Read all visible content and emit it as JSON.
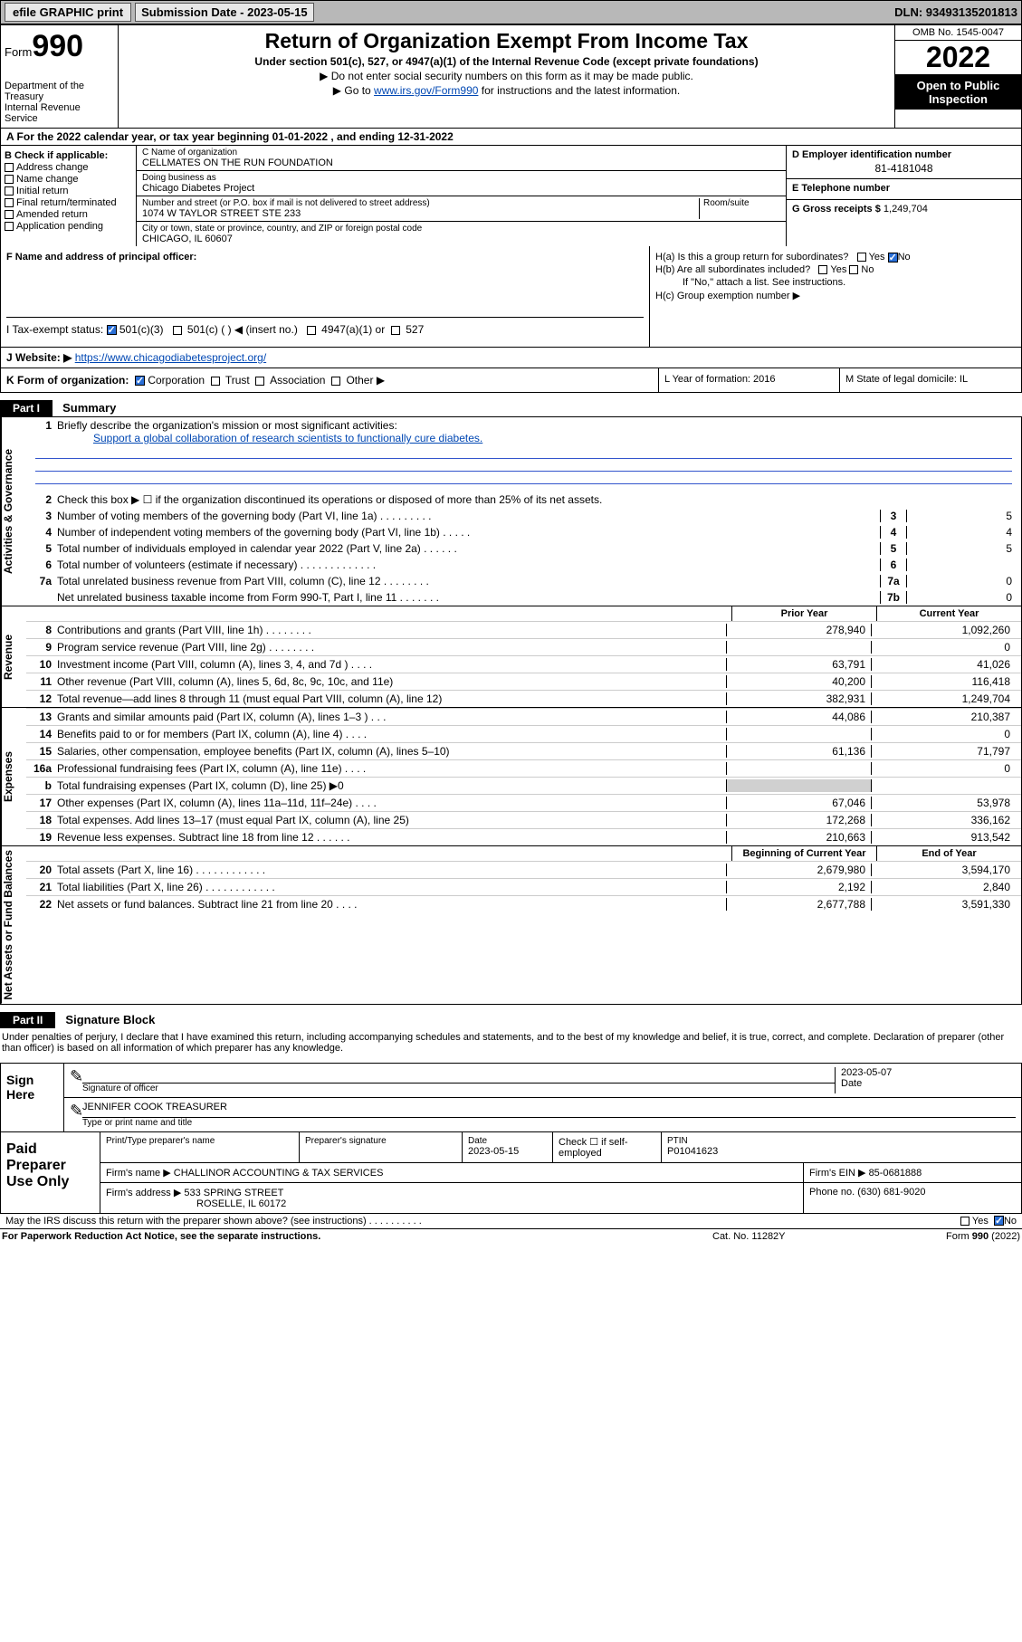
{
  "topbar": {
    "efile": "efile GRAPHIC print",
    "submission_label": "Submission Date - 2023-05-15",
    "dln": "DLN: 93493135201813"
  },
  "header": {
    "form_word": "Form",
    "form_num": "990",
    "dept": "Department of the Treasury",
    "irs": "Internal Revenue Service",
    "title": "Return of Organization Exempt From Income Tax",
    "sub1": "Under section 501(c), 527, or 4947(a)(1) of the Internal Revenue Code (except private foundations)",
    "sub2": "▶ Do not enter social security numbers on this form as it may be made public.",
    "sub3_pre": "▶ Go to ",
    "sub3_link": "www.irs.gov/Form990",
    "sub3_post": " for instructions and the latest information.",
    "omb": "OMB No. 1545-0047",
    "year": "2022",
    "open": "Open to Public Inspection"
  },
  "row_a": "A For the 2022 calendar year, or tax year beginning 01-01-2022    , and ending 12-31-2022",
  "col_b": {
    "title": "B Check if applicable:",
    "items": [
      "Address change",
      "Name change",
      "Initial return",
      "Final return/terminated",
      "Amended return",
      "Application pending"
    ]
  },
  "col_c": {
    "name_lbl": "C Name of organization",
    "name_val": "CELLMATES ON THE RUN FOUNDATION",
    "dba_lbl": "Doing business as",
    "dba_val": "Chicago Diabetes Project",
    "addr_lbl": "Number and street (or P.O. box if mail is not delivered to street address)",
    "room_lbl": "Room/suite",
    "addr_val": "1074 W TAYLOR STREET STE 233",
    "city_lbl": "City or town, state or province, country, and ZIP or foreign postal code",
    "city_val": "CHICAGO, IL  60607"
  },
  "col_de": {
    "d_lbl": "D Employer identification number",
    "d_val": "81-4181048",
    "e_lbl": "E Telephone number",
    "e_val": "",
    "g_lbl": "G Gross receipts $",
    "g_val": "1,249,704"
  },
  "row_f": "F  Name and address of principal officer:",
  "col_h": {
    "ha": "H(a)  Is this a group return for subordinates?",
    "hb": "H(b)  Are all subordinates included?",
    "hb_note": "If \"No,\" attach a list. See instructions.",
    "hc": "H(c)  Group exemption number ▶"
  },
  "row_i": {
    "label": "I   Tax-exempt status:",
    "opt1": "501(c)(3)",
    "opt2": "501(c) (  ) ◀ (insert no.)",
    "opt3": "4947(a)(1) or",
    "opt4": "527"
  },
  "row_j": {
    "label": "J   Website: ▶",
    "val": " https://www.chicagodiabetesproject.org/"
  },
  "row_k": "K Form of organization:",
  "row_k_opts": [
    "Corporation",
    "Trust",
    "Association",
    "Other ▶"
  ],
  "row_l": "L Year of formation: 2016",
  "row_m": "M State of legal domicile: IL",
  "part1": {
    "header": "Part I",
    "title": "Summary"
  },
  "summary": {
    "gov_label": "Activities & Governance",
    "rev_label": "Revenue",
    "exp_label": "Expenses",
    "net_label": "Net Assets or Fund Balances",
    "line1_lbl": "Briefly describe the organization's mission or most significant activities:",
    "line1_val": "Support a global collaboration of research scientists to functionally cure diabetes.",
    "line2": "Check this box ▶ ☐  if the organization discontinued its operations or disposed of more than 25% of its net assets.",
    "lines_gov": [
      {
        "n": "3",
        "d": "Number of voting members of the governing body (Part VI, line 1a)   .    .    .    .    .    .    .    .    .",
        "box": "3",
        "v": "5"
      },
      {
        "n": "4",
        "d": "Number of independent voting members of the governing body (Part VI, line 1b)   .    .    .    .    .",
        "box": "4",
        "v": "4"
      },
      {
        "n": "5",
        "d": "Total number of individuals employed in calendar year 2022 (Part V, line 2a)   .    .    .    .    .    .",
        "box": "5",
        "v": "5"
      },
      {
        "n": "6",
        "d": "Total number of volunteers (estimate if necessary)   .    .    .    .    .    .    .    .    .    .    .    .    .",
        "box": "6",
        "v": ""
      },
      {
        "n": "7a",
        "d": "Total unrelated business revenue from Part VIII, column (C), line 12   .    .    .    .    .    .    .    .",
        "box": "7a",
        "v": "0"
      },
      {
        "n": "",
        "d": "Net unrelated business taxable income from Form 990-T, Part I, line 11   .    .    .    .    .    .    .",
        "box": "7b",
        "v": "0"
      }
    ],
    "prior_head": "Prior Year",
    "curr_head": "Current Year",
    "lines_rev": [
      {
        "n": "8",
        "d": "Contributions and grants (Part VIII, line 1h)   .    .    .    .    .    .    .    .",
        "p": "278,940",
        "c": "1,092,260"
      },
      {
        "n": "9",
        "d": "Program service revenue (Part VIII, line 2g)   .    .    .    .    .    .    .    .",
        "p": "",
        "c": "0"
      },
      {
        "n": "10",
        "d": "Investment income (Part VIII, column (A), lines 3, 4, and 7d )   .    .    .    .",
        "p": "63,791",
        "c": "41,026"
      },
      {
        "n": "11",
        "d": "Other revenue (Part VIII, column (A), lines 5, 6d, 8c, 9c, 10c, and 11e)",
        "p": "40,200",
        "c": "116,418"
      },
      {
        "n": "12",
        "d": "Total revenue—add lines 8 through 11 (must equal Part VIII, column (A), line 12)",
        "p": "382,931",
        "c": "1,249,704"
      }
    ],
    "lines_exp": [
      {
        "n": "13",
        "d": "Grants and similar amounts paid (Part IX, column (A), lines 1–3 )   .    .    .",
        "p": "44,086",
        "c": "210,387"
      },
      {
        "n": "14",
        "d": "Benefits paid to or for members (Part IX, column (A), line 4)   .    .    .    .",
        "p": "",
        "c": "0"
      },
      {
        "n": "15",
        "d": "Salaries, other compensation, employee benefits (Part IX, column (A), lines 5–10)",
        "p": "61,136",
        "c": "71,797"
      },
      {
        "n": "16a",
        "d": "Professional fundraising fees (Part IX, column (A), line 11e)   .    .    .    .",
        "p": "",
        "c": "0"
      },
      {
        "n": "b",
        "d": "Total fundraising expenses (Part IX, column (D), line 25) ▶0",
        "p": "",
        "c": "",
        "grey": true
      },
      {
        "n": "17",
        "d": "Other expenses (Part IX, column (A), lines 11a–11d, 11f–24e)   .    .    .    .",
        "p": "67,046",
        "c": "53,978"
      },
      {
        "n": "18",
        "d": "Total expenses. Add lines 13–17 (must equal Part IX, column (A), line 25)",
        "p": "172,268",
        "c": "336,162"
      },
      {
        "n": "19",
        "d": "Revenue less expenses. Subtract line 18 from line 12   .    .    .    .    .    .",
        "p": "210,663",
        "c": "913,542"
      }
    ],
    "beg_head": "Beginning of Current Year",
    "end_head": "End of Year",
    "lines_net": [
      {
        "n": "20",
        "d": "Total assets (Part X, line 16)   .    .    .    .    .    .    .    .    .    .    .    .",
        "p": "2,679,980",
        "c": "3,594,170"
      },
      {
        "n": "21",
        "d": "Total liabilities (Part X, line 26)   .    .    .    .    .    .    .    .    .    .    .    .",
        "p": "2,192",
        "c": "2,840"
      },
      {
        "n": "22",
        "d": "Net assets or fund balances. Subtract line 21 from line 20   .    .    .    .",
        "p": "2,677,788",
        "c": "3,591,330"
      }
    ]
  },
  "part2": {
    "header": "Part II",
    "title": "Signature Block",
    "intro": "Under penalties of perjury, I declare that I have examined this return, including accompanying schedules and statements, and to the best of my knowledge and belief, it is true, correct, and complete. Declaration of preparer (other than officer) is based on all information of which preparer has any knowledge."
  },
  "sign": {
    "left": "Sign Here",
    "sig_lbl": "Signature of officer",
    "date_val": "2023-05-07",
    "date_lbl": "Date",
    "name_val": "JENNIFER COOK TREASURER",
    "name_lbl": "Type or print name and title"
  },
  "paid": {
    "left": "Paid Preparer Use Only",
    "h1": "Print/Type preparer's name",
    "h2": "Preparer's signature",
    "h3_lbl": "Date",
    "h3_val": "2023-05-15",
    "h4": "Check ☐ if self-employed",
    "h5_lbl": "PTIN",
    "h5_val": "P01041623",
    "firm_name_lbl": "Firm's name      ▶",
    "firm_name_val": "CHALLINOR ACCOUNTING & TAX SERVICES",
    "firm_ein_lbl": "Firm's EIN ▶",
    "firm_ein_val": "85-0681888",
    "firm_addr_lbl": "Firm's address ▶",
    "firm_addr_val": "533 SPRING STREET",
    "firm_city": "ROSELLE, IL  60172",
    "phone_lbl": "Phone no.",
    "phone_val": "(630) 681-9020"
  },
  "footer": {
    "discuss": "May the IRS discuss this return with the preparer shown above? (see instructions)    .    .    .    .    .    .    .    .    .    .",
    "paperwork": "For Paperwork Reduction Act Notice, see the separate instructions.",
    "cat": "Cat. No. 11282Y",
    "form": "Form 990 (2022)"
  }
}
